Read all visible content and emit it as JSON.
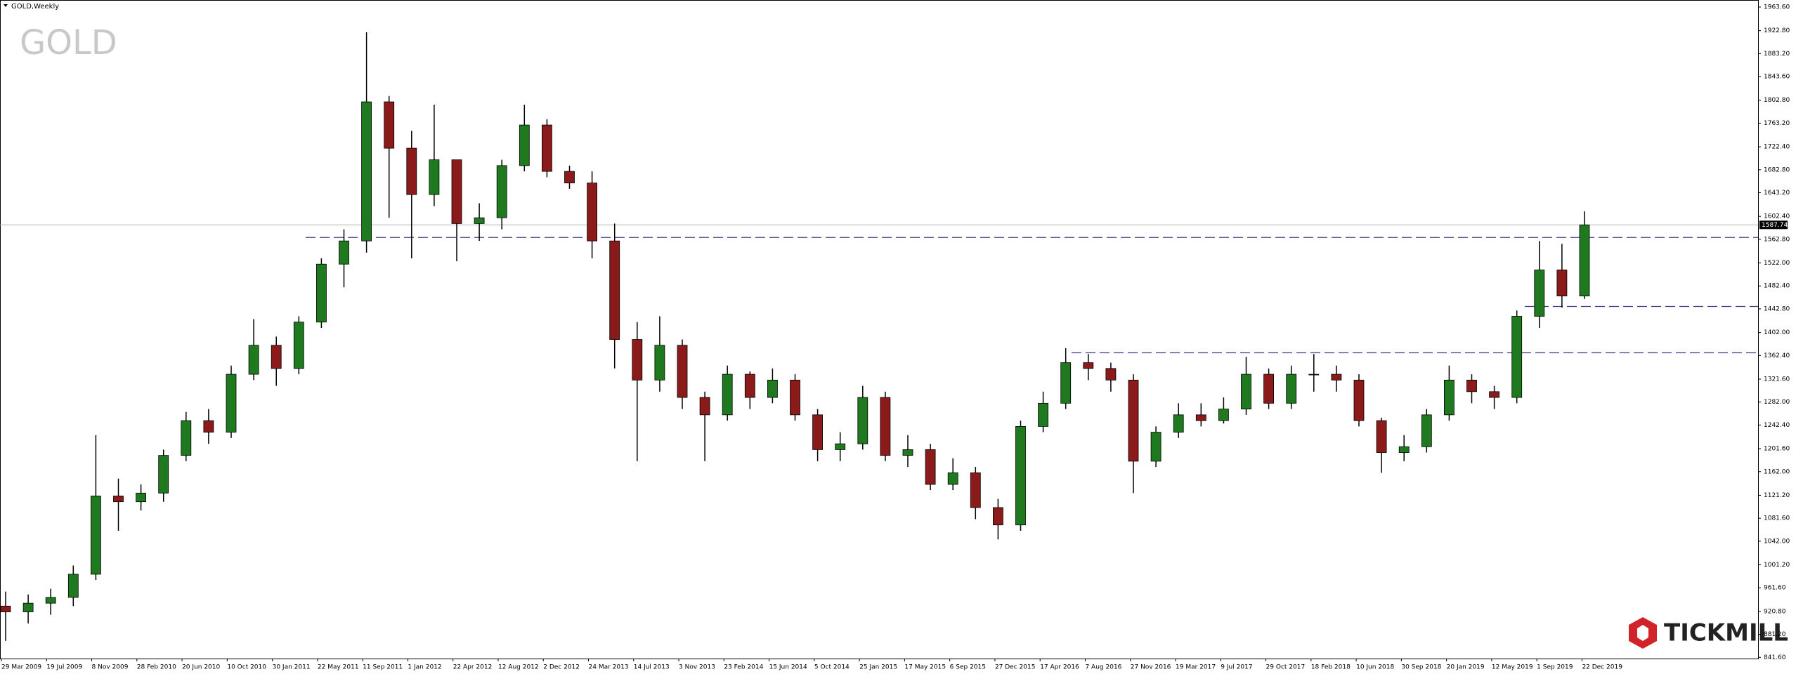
{
  "chart_data": {
    "type": "candlestick",
    "title": "GOLD,Weekly",
    "watermark": "GOLD",
    "brand": "TICKMILL",
    "last_price": 1587.74,
    "x_labels": [
      "29 Mar 2009",
      "19 Jul 2009",
      "8 Nov 2009",
      "28 Feb 2010",
      "20 Jun 2010",
      "10 Oct 2010",
      "30 Jan 2011",
      "22 May 2011",
      "11 Sep 2011",
      "1 Jan 2012",
      "22 Apr 2012",
      "12 Aug 2012",
      "2 Dec 2012",
      "24 Mar 2013",
      "14 Jul 2013",
      "3 Nov 2013",
      "23 Feb 2014",
      "15 Jun 2014",
      "5 Oct 2014",
      "25 Jan 2015",
      "17 May 2015",
      "6 Sep 2015",
      "27 Dec 2015",
      "17 Apr 2016",
      "7 Aug 2016",
      "27 Nov 2016",
      "19 Mar 2017",
      "9 Jul 2017",
      "29 Oct 2017",
      "18 Feb 2018",
      "10 Jun 2018",
      "30 Sep 2018",
      "20 Jan 2019",
      "12 May 2019",
      "1 Sep 2019",
      "22 Dec 2019"
    ],
    "open": [
      930,
      920,
      935,
      945,
      985,
      1120,
      1110,
      1125,
      1190,
      1250,
      1230,
      1330,
      1380,
      1340,
      1420,
      1520,
      1560,
      1800,
      1720,
      1640,
      1700,
      1590,
      1600,
      1690,
      1760,
      1680,
      1660,
      1560,
      1390,
      1320,
      1380,
      1290,
      1260,
      1330,
      1290,
      1320,
      1260,
      1200,
      1210,
      1290,
      1190,
      1200,
      1140,
      1160,
      1100,
      1070,
      1240,
      1280,
      1350,
      1340,
      1320,
      1180,
      1230,
      1260,
      1250,
      1270,
      1330,
      1280,
      1330,
      1330,
      1320,
      1250,
      1195,
      1205,
      1260,
      1320,
      1300,
      1290,
      1430,
      1510,
      1465
    ],
    "high": [
      955,
      950,
      960,
      1000,
      1225,
      1150,
      1140,
      1200,
      1265,
      1270,
      1345,
      1425,
      1395,
      1430,
      1530,
      1580,
      1920,
      1810,
      1750,
      1795,
      1700,
      1625,
      1700,
      1795,
      1770,
      1690,
      1680,
      1590,
      1420,
      1430,
      1390,
      1300,
      1345,
      1335,
      1340,
      1330,
      1270,
      1230,
      1310,
      1300,
      1225,
      1210,
      1185,
      1170,
      1115,
      1250,
      1300,
      1375,
      1365,
      1350,
      1330,
      1240,
      1280,
      1280,
      1290,
      1360,
      1340,
      1345,
      1365,
      1345,
      1330,
      1255,
      1225,
      1270,
      1345,
      1330,
      1310,
      1440,
      1560,
      1555,
      1611
    ],
    "low": [
      870,
      900,
      915,
      930,
      975,
      1060,
      1095,
      1110,
      1180,
      1210,
      1220,
      1320,
      1310,
      1330,
      1410,
      1480,
      1540,
      1600,
      1530,
      1620,
      1525,
      1560,
      1580,
      1680,
      1670,
      1650,
      1530,
      1340,
      1180,
      1300,
      1270,
      1180,
      1250,
      1270,
      1280,
      1250,
      1180,
      1180,
      1200,
      1180,
      1170,
      1130,
      1130,
      1080,
      1045,
      1060,
      1230,
      1270,
      1320,
      1300,
      1125,
      1170,
      1220,
      1240,
      1245,
      1260,
      1270,
      1270,
      1300,
      1300,
      1240,
      1160,
      1180,
      1195,
      1250,
      1280,
      1270,
      1280,
      1410,
      1445,
      1460
    ],
    "close": [
      920,
      935,
      945,
      985,
      1120,
      1110,
      1125,
      1190,
      1250,
      1230,
      1330,
      1380,
      1340,
      1420,
      1520,
      1560,
      1800,
      1720,
      1640,
      1700,
      1590,
      1600,
      1690,
      1760,
      1680,
      1660,
      1560,
      1390,
      1320,
      1380,
      1290,
      1260,
      1330,
      1290,
      1320,
      1260,
      1200,
      1210,
      1290,
      1190,
      1200,
      1140,
      1160,
      1100,
      1070,
      1240,
      1280,
      1350,
      1340,
      1320,
      1180,
      1230,
      1260,
      1250,
      1270,
      1330,
      1280,
      1330,
      1330,
      1320,
      1250,
      1195,
      1205,
      1260,
      1320,
      1300,
      1290,
      1430,
      1510,
      1465,
      1587.74
    ],
    "up_color": "#1f7a1f",
    "down_color": "#8b1a1a",
    "levels": [
      1566,
      1447,
      1367
    ],
    "level_color": "#3a3a8a",
    "ylim": [
      839.5,
      1975.7
    ],
    "yticks": [
      {
        "value": 1963.6,
        "label": "1963.60"
      },
      {
        "value": 1922.8,
        "label": "1922.80"
      },
      {
        "value": 1883.2,
        "label": "1883.20"
      },
      {
        "value": 1843.6,
        "label": "1843.60"
      },
      {
        "value": 1802.8,
        "label": "1802.80"
      },
      {
        "value": 1763.2,
        "label": "1763.20"
      },
      {
        "value": 1722.4,
        "label": "1722.40"
      },
      {
        "value": 1682.8,
        "label": "1682.80"
      },
      {
        "value": 1643.2,
        "label": "1643.20"
      },
      {
        "value": 1602.4,
        "label": "1602.40"
      },
      {
        "value": 1562.8,
        "label": "1562.80"
      },
      {
        "value": 1522,
        "label": "1522.00"
      },
      {
        "value": 1482.4,
        "label": "1482.40"
      },
      {
        "value": 1442.8,
        "label": "1442.80"
      },
      {
        "value": 1402,
        "label": "1402.00"
      },
      {
        "value": 1362.4,
        "label": "1362.40"
      },
      {
        "value": 1321.6,
        "label": "1321.60"
      },
      {
        "value": 1282,
        "label": "1282.00"
      },
      {
        "value": 1242.4,
        "label": "1242.40"
      },
      {
        "value": 1201.6,
        "label": "1201.60"
      },
      {
        "value": 1162,
        "label": "1162.00"
      },
      {
        "value": 1121.2,
        "label": "1121.20"
      },
      {
        "value": 1081.6,
        "label": "1081.60"
      },
      {
        "value": 1042,
        "label": "1042.00"
      },
      {
        "value": 1001.2,
        "label": "1001.20"
      },
      {
        "value": 961.6,
        "label": "961.60"
      },
      {
        "value": 920.8,
        "label": "920.80"
      },
      {
        "value": 881.2,
        "label": "881.20"
      },
      {
        "value": 841.6,
        "label": "841.60"
      }
    ]
  }
}
